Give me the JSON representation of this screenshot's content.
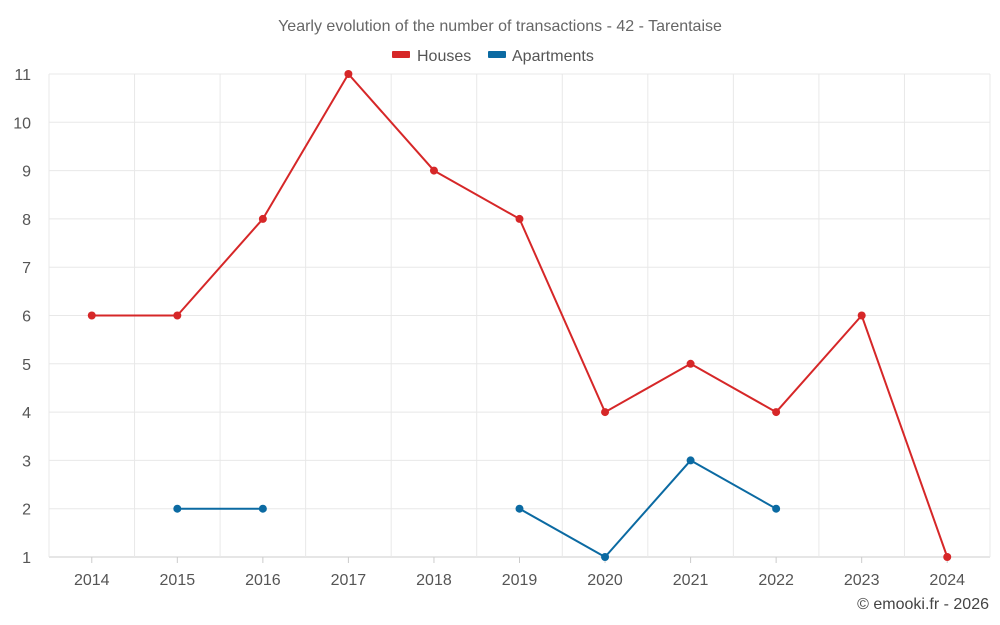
{
  "chart_data": {
    "type": "line",
    "title": "Yearly evolution of the number of transactions - 42 - Tarentaise",
    "categories": [
      "2014",
      "2015",
      "2016",
      "2017",
      "2018",
      "2019",
      "2020",
      "2021",
      "2022",
      "2023",
      "2024"
    ],
    "ylim": [
      1,
      11
    ],
    "yticks": [
      1,
      2,
      3,
      4,
      5,
      6,
      7,
      8,
      9,
      10,
      11
    ],
    "grid": true,
    "legend_position": "top-center",
    "series": [
      {
        "name": "Houses",
        "color": "#d62728",
        "values": [
          6,
          6,
          8,
          11,
          9,
          8,
          4,
          5,
          4,
          6,
          1
        ]
      },
      {
        "name": "Apartments",
        "color": "#0b6aa2",
        "values": [
          null,
          2,
          2,
          null,
          null,
          2,
          1,
          3,
          2,
          null,
          null
        ]
      }
    ],
    "footer": "© emooki.fr - 2026"
  }
}
